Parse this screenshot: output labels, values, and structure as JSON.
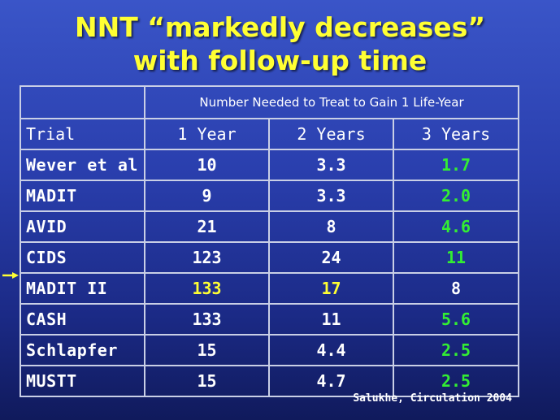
{
  "title": {
    "line1": "NNT  “markedly decreases”",
    "line2": "with follow-up time"
  },
  "table": {
    "superheader": "Number Needed to Treat to Gain 1 Life-Year",
    "headers": [
      "Trial",
      "1 Year",
      "2 Years",
      "3 Years"
    ],
    "rows": [
      {
        "trial": "Wever et al",
        "y1": "10",
        "y2": "3.3",
        "y3": "1.7"
      },
      {
        "trial": "MADIT",
        "y1": "9",
        "y2": "3.3",
        "y3": "2.0"
      },
      {
        "trial": "AVID",
        "y1": "21",
        "y2": "8",
        "y3": "4.6"
      },
      {
        "trial": "CIDS",
        "y1": "123",
        "y2": "24",
        "y3": "11"
      },
      {
        "trial": "MADIT II",
        "y1": "133",
        "y2": "17",
        "y3": "8"
      },
      {
        "trial": "CASH",
        "y1": "133",
        "y2": "11",
        "y3": "5.6"
      },
      {
        "trial": "Schlapfer",
        "y1": "15",
        "y2": "4.4",
        "y3": "2.5"
      },
      {
        "trial": "MUSTT",
        "y1": "15",
        "y2": "4.7",
        "y3": "2.5"
      }
    ],
    "highlighted_row": "MADIT II"
  },
  "citation": "Salukhe, Circulation 2004",
  "colors": {
    "title": "#ffff33",
    "highlight": "#ffff33",
    "three_year": "#33ee33",
    "text": "#ffffff",
    "grid": "#c9cfe6",
    "background_top": "#3a55c8",
    "background_bottom": "#101a5c"
  },
  "icons": {
    "row_marker": "arrow-right-icon"
  }
}
